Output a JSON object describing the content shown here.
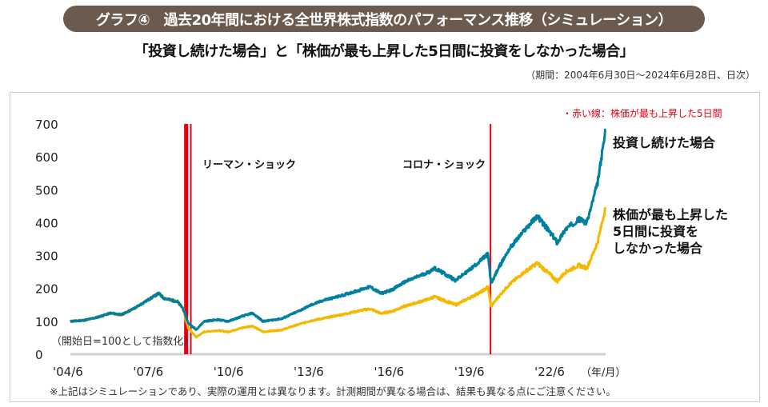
{
  "header": {
    "title": "グラフ④　過去20年間における全世界株式指数のパフォーマンス推移（シミュレーション）",
    "subtitle": "「投資し続けた場合」と「株価が最も上昇した5日間に投資をしなかった場合」",
    "period": "（期間：2004年6月30日〜2024年6月28日、日次）"
  },
  "footnote": "※上記はシミュレーションであり、実際の運用とは異なります。計測期間が異なる場合は、結果も異なる点にご注意ください。",
  "chart_data": {
    "type": "line",
    "ylim": [
      0,
      700
    ],
    "yticks": [
      "0",
      "100",
      "200",
      "300",
      "400",
      "500",
      "600",
      "700"
    ],
    "xticks": [
      "'04/6",
      "'07/6",
      "'10/6",
      "'13/6",
      "'16/6",
      "'19/6",
      "'22/6"
    ],
    "xunit": "（年/月）",
    "ynote": "（開始日=100として指数化）",
    "red_line_legend": "・赤い線：株価が最も上昇した5日間",
    "annotations": [
      "リーマン・ショック",
      "コロナ・ショック"
    ],
    "red_line_dates": [
      2008.78,
      2008.82,
      2008.87,
      2009.0,
      2020.2
    ],
    "colors": {
      "invested": "#00809f",
      "missed": "#f5b800",
      "red": "#e60012"
    },
    "series": [
      {
        "name": "投資し続けた場合",
        "points": [
          [
            2004.5,
            100
          ],
          [
            2005.0,
            103
          ],
          [
            2005.5,
            112
          ],
          [
            2006.0,
            125
          ],
          [
            2006.4,
            120
          ],
          [
            2006.9,
            140
          ],
          [
            2007.4,
            165
          ],
          [
            2007.8,
            185
          ],
          [
            2008.0,
            170
          ],
          [
            2008.5,
            160
          ],
          [
            2008.7,
            140
          ],
          [
            2008.9,
            95
          ],
          [
            2009.2,
            75
          ],
          [
            2009.5,
            100
          ],
          [
            2010.0,
            105
          ],
          [
            2010.4,
            100
          ],
          [
            2010.9,
            115
          ],
          [
            2011.3,
            125
          ],
          [
            2011.7,
            100
          ],
          [
            2012.4,
            108
          ],
          [
            2013.0,
            130
          ],
          [
            2013.5,
            150
          ],
          [
            2014.0,
            165
          ],
          [
            2014.5,
            175
          ],
          [
            2015.3,
            195
          ],
          [
            2015.7,
            205
          ],
          [
            2016.1,
            185
          ],
          [
            2016.5,
            195
          ],
          [
            2017.0,
            220
          ],
          [
            2017.9,
            250
          ],
          [
            2018.1,
            262
          ],
          [
            2018.9,
            225
          ],
          [
            2019.5,
            262
          ],
          [
            2019.9,
            290
          ],
          [
            2020.1,
            305
          ],
          [
            2020.22,
            215
          ],
          [
            2020.5,
            262
          ],
          [
            2020.9,
            320
          ],
          [
            2021.5,
            380
          ],
          [
            2021.95,
            420
          ],
          [
            2022.7,
            340
          ],
          [
            2023.0,
            380
          ],
          [
            2023.5,
            410
          ],
          [
            2023.8,
            400
          ],
          [
            2024.0,
            460
          ],
          [
            2024.2,
            520
          ],
          [
            2024.5,
            682
          ]
        ]
      },
      {
        "name": "株価が最も上昇した5日間に投資をしなかった場合",
        "label_lines": [
          "株価が最も上昇した",
          "5日間に投資を",
          "しなかった場合"
        ],
        "points": [
          [
            2004.5,
            100
          ],
          [
            2005.0,
            103
          ],
          [
            2005.5,
            112
          ],
          [
            2006.0,
            125
          ],
          [
            2006.4,
            120
          ],
          [
            2006.9,
            140
          ],
          [
            2007.4,
            165
          ],
          [
            2007.8,
            185
          ],
          [
            2008.0,
            170
          ],
          [
            2008.5,
            160
          ],
          [
            2008.7,
            140
          ],
          [
            2008.9,
            80
          ],
          [
            2009.2,
            52
          ],
          [
            2009.5,
            68
          ],
          [
            2010.0,
            72
          ],
          [
            2010.4,
            68
          ],
          [
            2010.9,
            80
          ],
          [
            2011.3,
            86
          ],
          [
            2011.7,
            68
          ],
          [
            2012.4,
            74
          ],
          [
            2013.0,
            90
          ],
          [
            2013.5,
            102
          ],
          [
            2014.0,
            110
          ],
          [
            2014.5,
            118
          ],
          [
            2015.3,
            132
          ],
          [
            2015.7,
            138
          ],
          [
            2016.1,
            124
          ],
          [
            2016.5,
            130
          ],
          [
            2017.0,
            146
          ],
          [
            2017.9,
            168
          ],
          [
            2018.1,
            175
          ],
          [
            2018.9,
            150
          ],
          [
            2019.5,
            175
          ],
          [
            2019.9,
            192
          ],
          [
            2020.1,
            205
          ],
          [
            2020.22,
            145
          ],
          [
            2020.5,
            175
          ],
          [
            2020.9,
            212
          ],
          [
            2021.5,
            252
          ],
          [
            2021.95,
            277
          ],
          [
            2022.7,
            222
          ],
          [
            2023.0,
            250
          ],
          [
            2023.5,
            270
          ],
          [
            2023.8,
            262
          ],
          [
            2024.0,
            300
          ],
          [
            2024.2,
            340
          ],
          [
            2024.5,
            447
          ]
        ]
      }
    ]
  }
}
